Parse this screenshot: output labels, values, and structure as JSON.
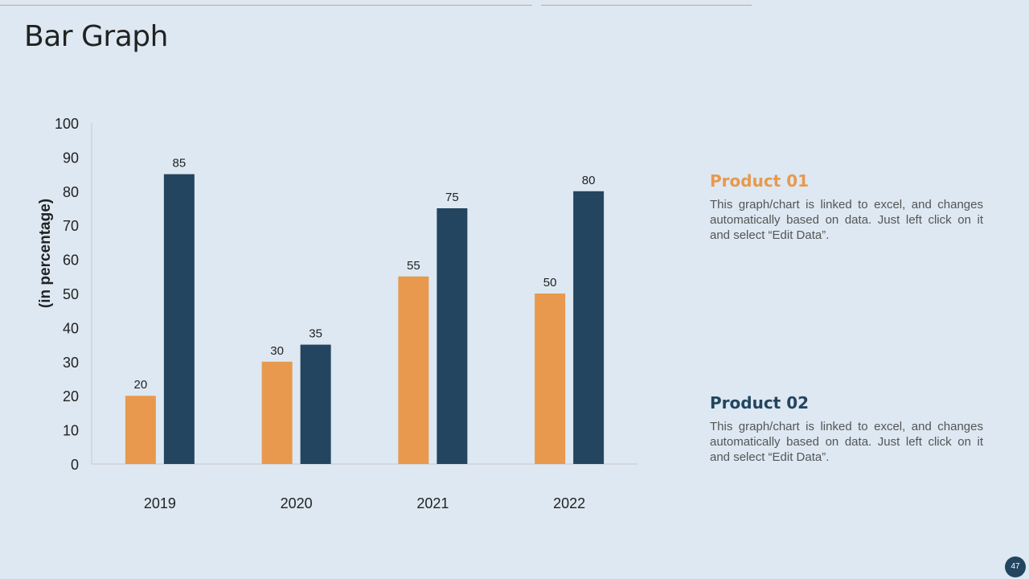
{
  "slide": {
    "title": "Bar Graph",
    "page_number": "47"
  },
  "colors": {
    "product_01": "#e8994d",
    "product_02": "#23455f",
    "axis_line": "#c9c9c9",
    "text_dark": "#222222"
  },
  "legend": [
    {
      "title": "Product 01",
      "description": "This graph/chart is linked to excel, and changes automatically based on data. Just left click on it and select “Edit Data”."
    },
    {
      "title": "Product 02",
      "description": "This graph/chart is linked to excel, and changes automatically based on data. Just left click on it and select “Edit Data”."
    }
  ],
  "chart_data": {
    "type": "bar",
    "title": "",
    "xlabel": "",
    "ylabel": "(in percentage)",
    "ylim": [
      0,
      100
    ],
    "yticks": [
      "0",
      "10",
      "20",
      "30",
      "40",
      "50",
      "60",
      "70",
      "80",
      "90",
      "100"
    ],
    "categories": [
      "2019",
      "2020",
      "2021",
      "2022"
    ],
    "series": [
      {
        "name": "Product 01",
        "values": [
          20,
          30,
          55,
          50
        ]
      },
      {
        "name": "Product 02",
        "values": [
          85,
          35,
          75,
          80
        ]
      }
    ],
    "grid": false,
    "data_labels": true
  }
}
